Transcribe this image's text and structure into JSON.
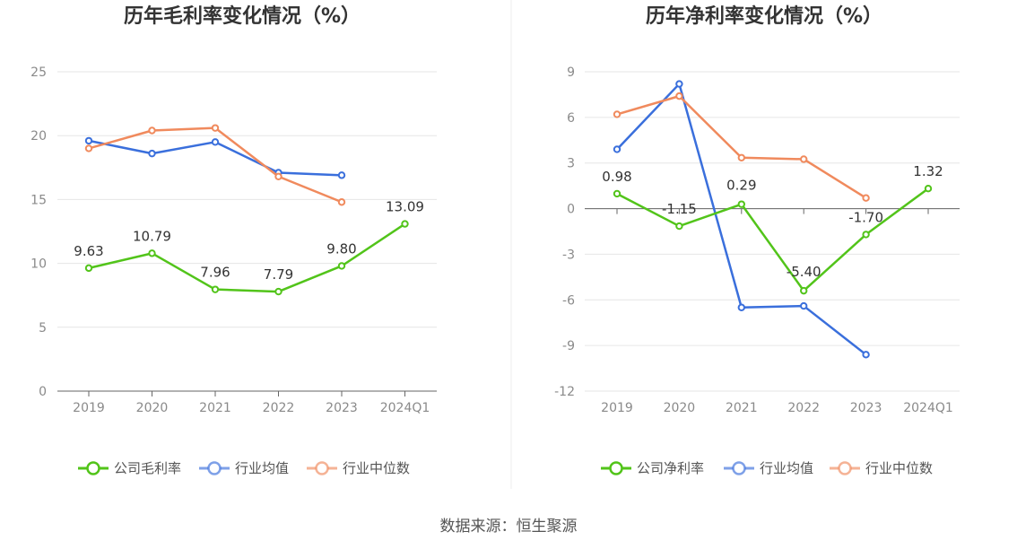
{
  "source": "数据来源：恒生聚源",
  "chart_data": [
    {
      "type": "line",
      "title": "历年毛利率变化情况（%）",
      "categories": [
        "2019",
        "2020",
        "2021",
        "2022",
        "2023",
        "2024Q1"
      ],
      "ylim": [
        0,
        25
      ],
      "yticks": [
        0,
        5,
        10,
        15,
        20,
        25
      ],
      "series": [
        {
          "name": "公司毛利率",
          "color": "#52c41a",
          "values": [
            9.63,
            10.79,
            7.96,
            7.79,
            9.8,
            13.09
          ],
          "labels": [
            "9.63",
            "10.79",
            "7.96",
            "7.79",
            "9.80",
            "13.09"
          ]
        },
        {
          "name": "行业均值",
          "color": "#3a6fdc",
          "values": [
            19.6,
            18.6,
            19.5,
            17.1,
            16.9,
            null
          ]
        },
        {
          "name": "行业中位数",
          "color": "#f08a5d",
          "values": [
            19.0,
            20.4,
            20.6,
            16.8,
            14.8,
            null
          ]
        }
      ]
    },
    {
      "type": "line",
      "title": "历年净利率变化情况（%）",
      "categories": [
        "2019",
        "2020",
        "2021",
        "2022",
        "2023",
        "2024Q1"
      ],
      "ylim": [
        -12,
        9
      ],
      "yticks": [
        -12,
        -9,
        -6,
        -3,
        0,
        3,
        6,
        9
      ],
      "series": [
        {
          "name": "公司净利率",
          "color": "#52c41a",
          "values": [
            0.98,
            -1.15,
            0.29,
            -5.4,
            -1.7,
            1.32
          ],
          "labels": [
            "0.98",
            "-1.15",
            "0.29",
            "-5.40",
            "-1.70",
            "1.32"
          ]
        },
        {
          "name": "行业均值",
          "color": "#3a6fdc",
          "values": [
            3.9,
            8.2,
            -6.5,
            -6.4,
            -9.6,
            null
          ]
        },
        {
          "name": "行业中位数",
          "color": "#f08a5d",
          "values": [
            6.2,
            7.4,
            3.35,
            3.25,
            0.7,
            null
          ]
        }
      ]
    }
  ]
}
